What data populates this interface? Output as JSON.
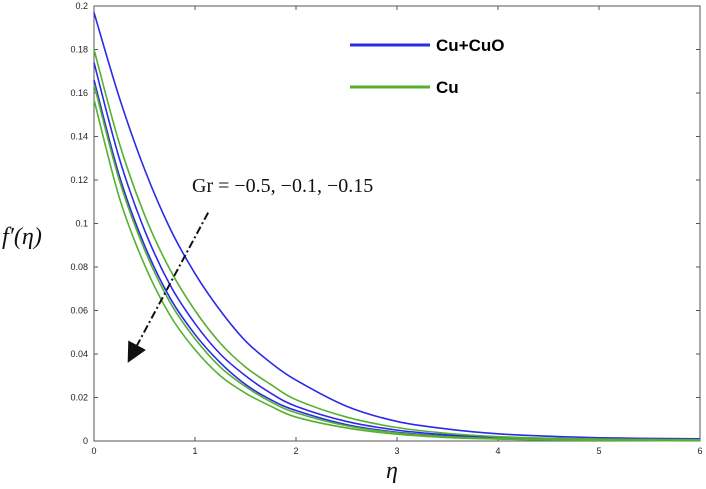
{
  "chart_data": {
    "type": "line",
    "title": "",
    "xlabel": "η",
    "ylabel": "f′(η)",
    "xlim": [
      0,
      6
    ],
    "ylim": [
      0,
      0.2
    ],
    "xticks": [
      0,
      1,
      2,
      3,
      4,
      5,
      6
    ],
    "yticks": [
      0,
      0.02,
      0.04,
      0.06,
      0.08,
      0.1,
      0.12,
      0.14,
      0.16,
      0.18,
      0.2
    ],
    "grid": false,
    "legend_position": "top-right",
    "x": [
      0,
      0.25,
      0.5,
      0.75,
      1,
      1.25,
      1.5,
      1.75,
      2,
      2.5,
      3,
      3.5,
      4,
      4.5,
      5,
      5.5,
      6
    ],
    "series": [
      {
        "name": "Cu+CuO",
        "color": "#2a2ae8",
        "values": [
          0.197,
          0.158,
          0.125,
          0.098,
          0.077,
          0.06,
          0.046,
          0.036,
          0.028,
          0.016,
          0.009,
          0.0055,
          0.0033,
          0.0022,
          0.0015,
          0.0012,
          0.001
        ]
      },
      {
        "name": "",
        "color": "#2a2ae8",
        "values": [
          0.174,
          0.13,
          0.097,
          0.072,
          0.054,
          0.04,
          0.03,
          0.022,
          0.016,
          0.009,
          0.005,
          0.0028,
          0.0016,
          0.001,
          0.0007,
          0.0005,
          0.0004
        ]
      },
      {
        "name": "",
        "color": "#2a2ae8",
        "values": [
          0.166,
          0.122,
          0.09,
          0.066,
          0.049,
          0.036,
          0.026,
          0.019,
          0.014,
          0.0075,
          0.004,
          0.0022,
          0.0012,
          0.0007,
          0.0004,
          0.0003,
          0.0002
        ]
      },
      {
        "name": "Cu",
        "color": "#55b030",
        "values": [
          0.18,
          0.137,
          0.104,
          0.079,
          0.06,
          0.045,
          0.034,
          0.026,
          0.019,
          0.011,
          0.0062,
          0.0035,
          0.002,
          0.0013,
          0.0009,
          0.0007,
          0.0006
        ]
      },
      {
        "name": "",
        "color": "#55b030",
        "values": [
          0.164,
          0.12,
          0.088,
          0.064,
          0.047,
          0.034,
          0.025,
          0.018,
          0.013,
          0.007,
          0.0037,
          0.002,
          0.0011,
          0.0006,
          0.0004,
          0.0003,
          0.0002
        ]
      },
      {
        "name": "",
        "color": "#55b030",
        "values": [
          0.157,
          0.112,
          0.081,
          0.058,
          0.042,
          0.03,
          0.022,
          0.016,
          0.011,
          0.006,
          0.0031,
          0.0016,
          0.0009,
          0.0005,
          0.0003,
          0.0002,
          0.0001
        ]
      }
    ],
    "legend": [
      {
        "label": "Cu+CuO",
        "color": "#2a2ae8"
      },
      {
        "label": "Cu",
        "color": "#55b030"
      }
    ],
    "annotation": {
      "text": "Gr = −0.5, −0.1, −0.15",
      "arrow_from": [
        1.13,
        0.105
      ],
      "arrow_to": [
        0.38,
        0.04
      ]
    }
  }
}
